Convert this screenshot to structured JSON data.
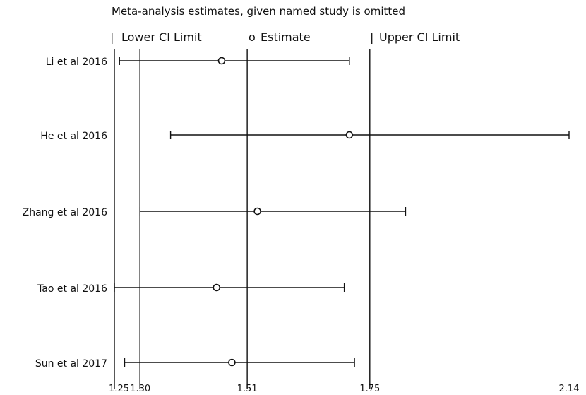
{
  "chart_data": {
    "type": "forest",
    "title": "Meta-analysis estimates, given named study is omitted",
    "legend": {
      "lower_glyph": "|",
      "lower": "Lower CI Limit",
      "estimate_glyph": "o",
      "estimate": "Estimate",
      "upper_glyph": "|",
      "upper": "Upper CI Limit",
      "placement": "top"
    },
    "categories": [
      "Li et al 2016",
      "He et al 2016",
      "Zhang et al 2016",
      "Tao et al 2016",
      "Sun et al 2017"
    ],
    "series": [
      {
        "name": "Lower CI Limit",
        "values": [
          1.26,
          1.36,
          1.3,
          1.25,
          1.27
        ]
      },
      {
        "name": "Estimate",
        "values": [
          1.46,
          1.71,
          1.53,
          1.45,
          1.48
        ]
      },
      {
        "name": "Upper CI Limit",
        "values": [
          1.71,
          2.14,
          1.82,
          1.7,
          1.72
        ]
      }
    ],
    "x_ticks": [
      {
        "value": 1.25,
        "label": "1.25"
      },
      {
        "value": 1.3,
        "label": "1.30"
      },
      {
        "value": 1.51,
        "label": "1.51"
      },
      {
        "value": 1.75,
        "label": "1.75"
      },
      {
        "value": 2.14,
        "label": "2.14"
      }
    ],
    "reference_lines": [
      1.25,
      1.3,
      1.51,
      1.75
    ],
    "xlim": [
      1.25,
      2.14
    ],
    "grid": false
  }
}
